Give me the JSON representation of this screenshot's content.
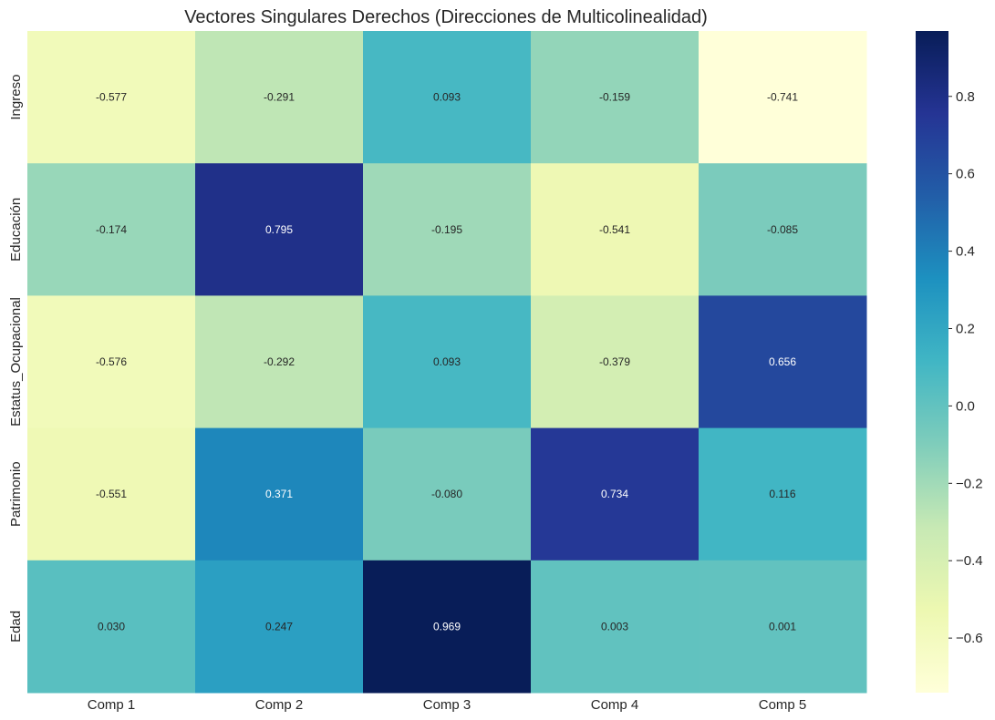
{
  "chart_data": {
    "type": "heatmap",
    "title": "Vectores Singulares Derechos (Direcciones de Multicolinealidad)",
    "xlabel": "",
    "ylabel": "",
    "x_labels": [
      "Comp 1",
      "Comp 2",
      "Comp 3",
      "Comp 4",
      "Comp 5"
    ],
    "y_labels": [
      "Ingreso",
      "Educación",
      "Estatus_Ocupacional",
      "Patrimonio",
      "Edad"
    ],
    "values": [
      [
        -0.577,
        -0.291,
        0.093,
        -0.159,
        -0.741
      ],
      [
        -0.174,
        0.795,
        -0.195,
        -0.541,
        -0.085
      ],
      [
        -0.576,
        -0.292,
        0.093,
        -0.379,
        0.656
      ],
      [
        -0.551,
        0.371,
        -0.08,
        0.734,
        0.116
      ],
      [
        0.03,
        0.247,
        0.969,
        0.003,
        0.001
      ]
    ],
    "value_format": "0.000",
    "colormap": "YlGnBu",
    "colorbar": {
      "vmin": -0.741,
      "vmax": 0.969,
      "ticks": [
        -0.6,
        -0.4,
        -0.2,
        0.0,
        0.2,
        0.4,
        0.6,
        0.8
      ],
      "tick_labels": [
        "−0.6",
        "−0.4",
        "−0.2",
        "0.0",
        "0.2",
        "0.4",
        "0.6",
        "0.8"
      ]
    },
    "grid": false
  }
}
